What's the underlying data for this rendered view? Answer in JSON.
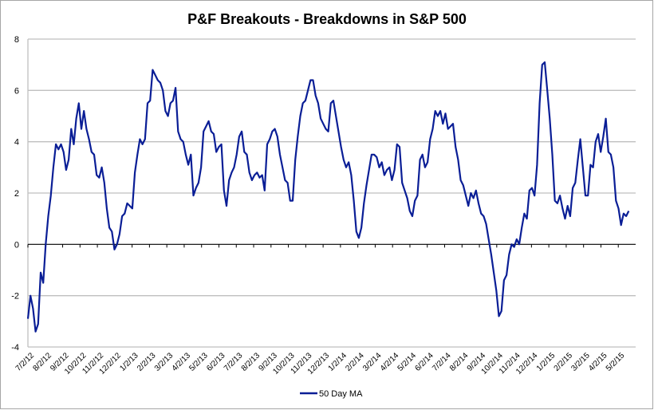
{
  "chart_data": {
    "type": "line",
    "title": "P&F Breakouts - Breakdowns in S&P 500",
    "xlabel": "",
    "ylabel": "",
    "ylim": [
      -4,
      8
    ],
    "yticks": [
      -4,
      -2,
      0,
      2,
      4,
      6,
      8
    ],
    "grid": true,
    "legend_placement": "bottom",
    "x_tick_labels": [
      "7/2/12",
      "8/2/12",
      "9/2/12",
      "10/2/12",
      "11/2/12",
      "12/2/12",
      "1/2/13",
      "2/2/13",
      "3/2/13",
      "4/2/13",
      "5/2/13",
      "6/2/13",
      "7/2/13",
      "8/2/13",
      "9/2/13",
      "10/2/13",
      "11/2/13",
      "12/2/13",
      "1/2/14",
      "2/2/14",
      "3/2/14",
      "4/2/14",
      "5/2/14",
      "6/2/14",
      "7/2/14",
      "8/2/14",
      "9/2/14",
      "10/2/14",
      "11/2/14",
      "12/2/14",
      "1/2/15",
      "2/2/15",
      "3/2/15",
      "4/2/15",
      "5/2/15"
    ],
    "x_range_months": [
      0,
      34.6
    ],
    "series": [
      {
        "name": "50 Day MA",
        "color": "#0a1e96",
        "values": [
          -2.9,
          -2.0,
          -2.5,
          -3.4,
          -3.1,
          -1.1,
          -1.5,
          0,
          1.1,
          1.9,
          3.0,
          3.9,
          3.7,
          3.9,
          3.6,
          2.9,
          3.3,
          4.5,
          3.9,
          4.9,
          5.5,
          4.5,
          5.2,
          4.5,
          4.1,
          3.6,
          3.5,
          2.7,
          2.6,
          3.0,
          2.4,
          1.4,
          0.65,
          0.5,
          -0.2,
          0.0,
          0.4,
          1.1,
          1.2,
          1.6,
          1.5,
          1.4,
          2.8,
          3.5,
          4.1,
          3.9,
          4.1,
          5.5,
          5.6,
          6.8,
          6.6,
          6.4,
          6.3,
          6.0,
          5.2,
          5.0,
          5.5,
          5.6,
          6.1,
          4.4,
          4.1,
          4.0,
          3.5,
          3.1,
          3.5,
          1.9,
          2.2,
          2.4,
          3.0,
          4.4,
          4.6,
          4.8,
          4.4,
          4.3,
          3.6,
          3.8,
          3.9,
          2.1,
          1.5,
          2.5,
          2.8,
          3.0,
          3.5,
          4.2,
          4.4,
          3.6,
          3.5,
          2.8,
          2.5,
          2.7,
          2.8,
          2.6,
          2.7,
          2.1,
          3.9,
          4.1,
          4.4,
          4.5,
          4.2,
          3.5,
          3.0,
          2.5,
          2.4,
          1.7,
          1.7,
          3.3,
          4.2,
          5.0,
          5.5,
          5.6,
          6.0,
          6.4,
          6.4,
          5.8,
          5.5,
          4.9,
          4.7,
          4.5,
          4.4,
          5.5,
          5.6,
          5.0,
          4.4,
          3.8,
          3.3,
          3.0,
          3.2,
          2.7,
          1.7,
          0.5,
          0.25,
          0.65,
          1.6,
          2.3,
          2.9,
          3.5,
          3.5,
          3.4,
          3.0,
          3.2,
          2.7,
          2.9,
          3.0,
          2.5,
          2.9,
          3.9,
          3.8,
          2.4,
          2.1,
          1.8,
          1.3,
          1.1,
          1.7,
          1.9,
          3.3,
          3.5,
          3.0,
          3.2,
          4.1,
          4.5,
          5.2,
          5.0,
          5.2,
          4.7,
          5.1,
          4.5,
          4.6,
          4.7,
          3.8,
          3.3,
          2.5,
          2.3,
          1.9,
          1.5,
          2.0,
          1.8,
          2.1,
          1.6,
          1.2,
          1.1,
          0.8,
          0.2,
          -0.4,
          -1.1,
          -1.8,
          -2.8,
          -2.6,
          -1.4,
          -1.2,
          -0.4,
          0,
          -0.1,
          0.2,
          0.0,
          0.65,
          1.2,
          1.0,
          2.1,
          2.2,
          1.9,
          3.1,
          5.5,
          7.0,
          7.1,
          6.0,
          4.9,
          3.5,
          1.7,
          1.6,
          1.9,
          1.4,
          1.0,
          1.5,
          1.1,
          2.2,
          2.4,
          3.3,
          4.1,
          3.0,
          1.9,
          1.9,
          3.1,
          3.0,
          4.0,
          4.3,
          3.6,
          4.2,
          4.9,
          3.6,
          3.5,
          3.0,
          1.7,
          1.4,
          0.75,
          1.2,
          1.1,
          1.3
        ]
      }
    ]
  }
}
